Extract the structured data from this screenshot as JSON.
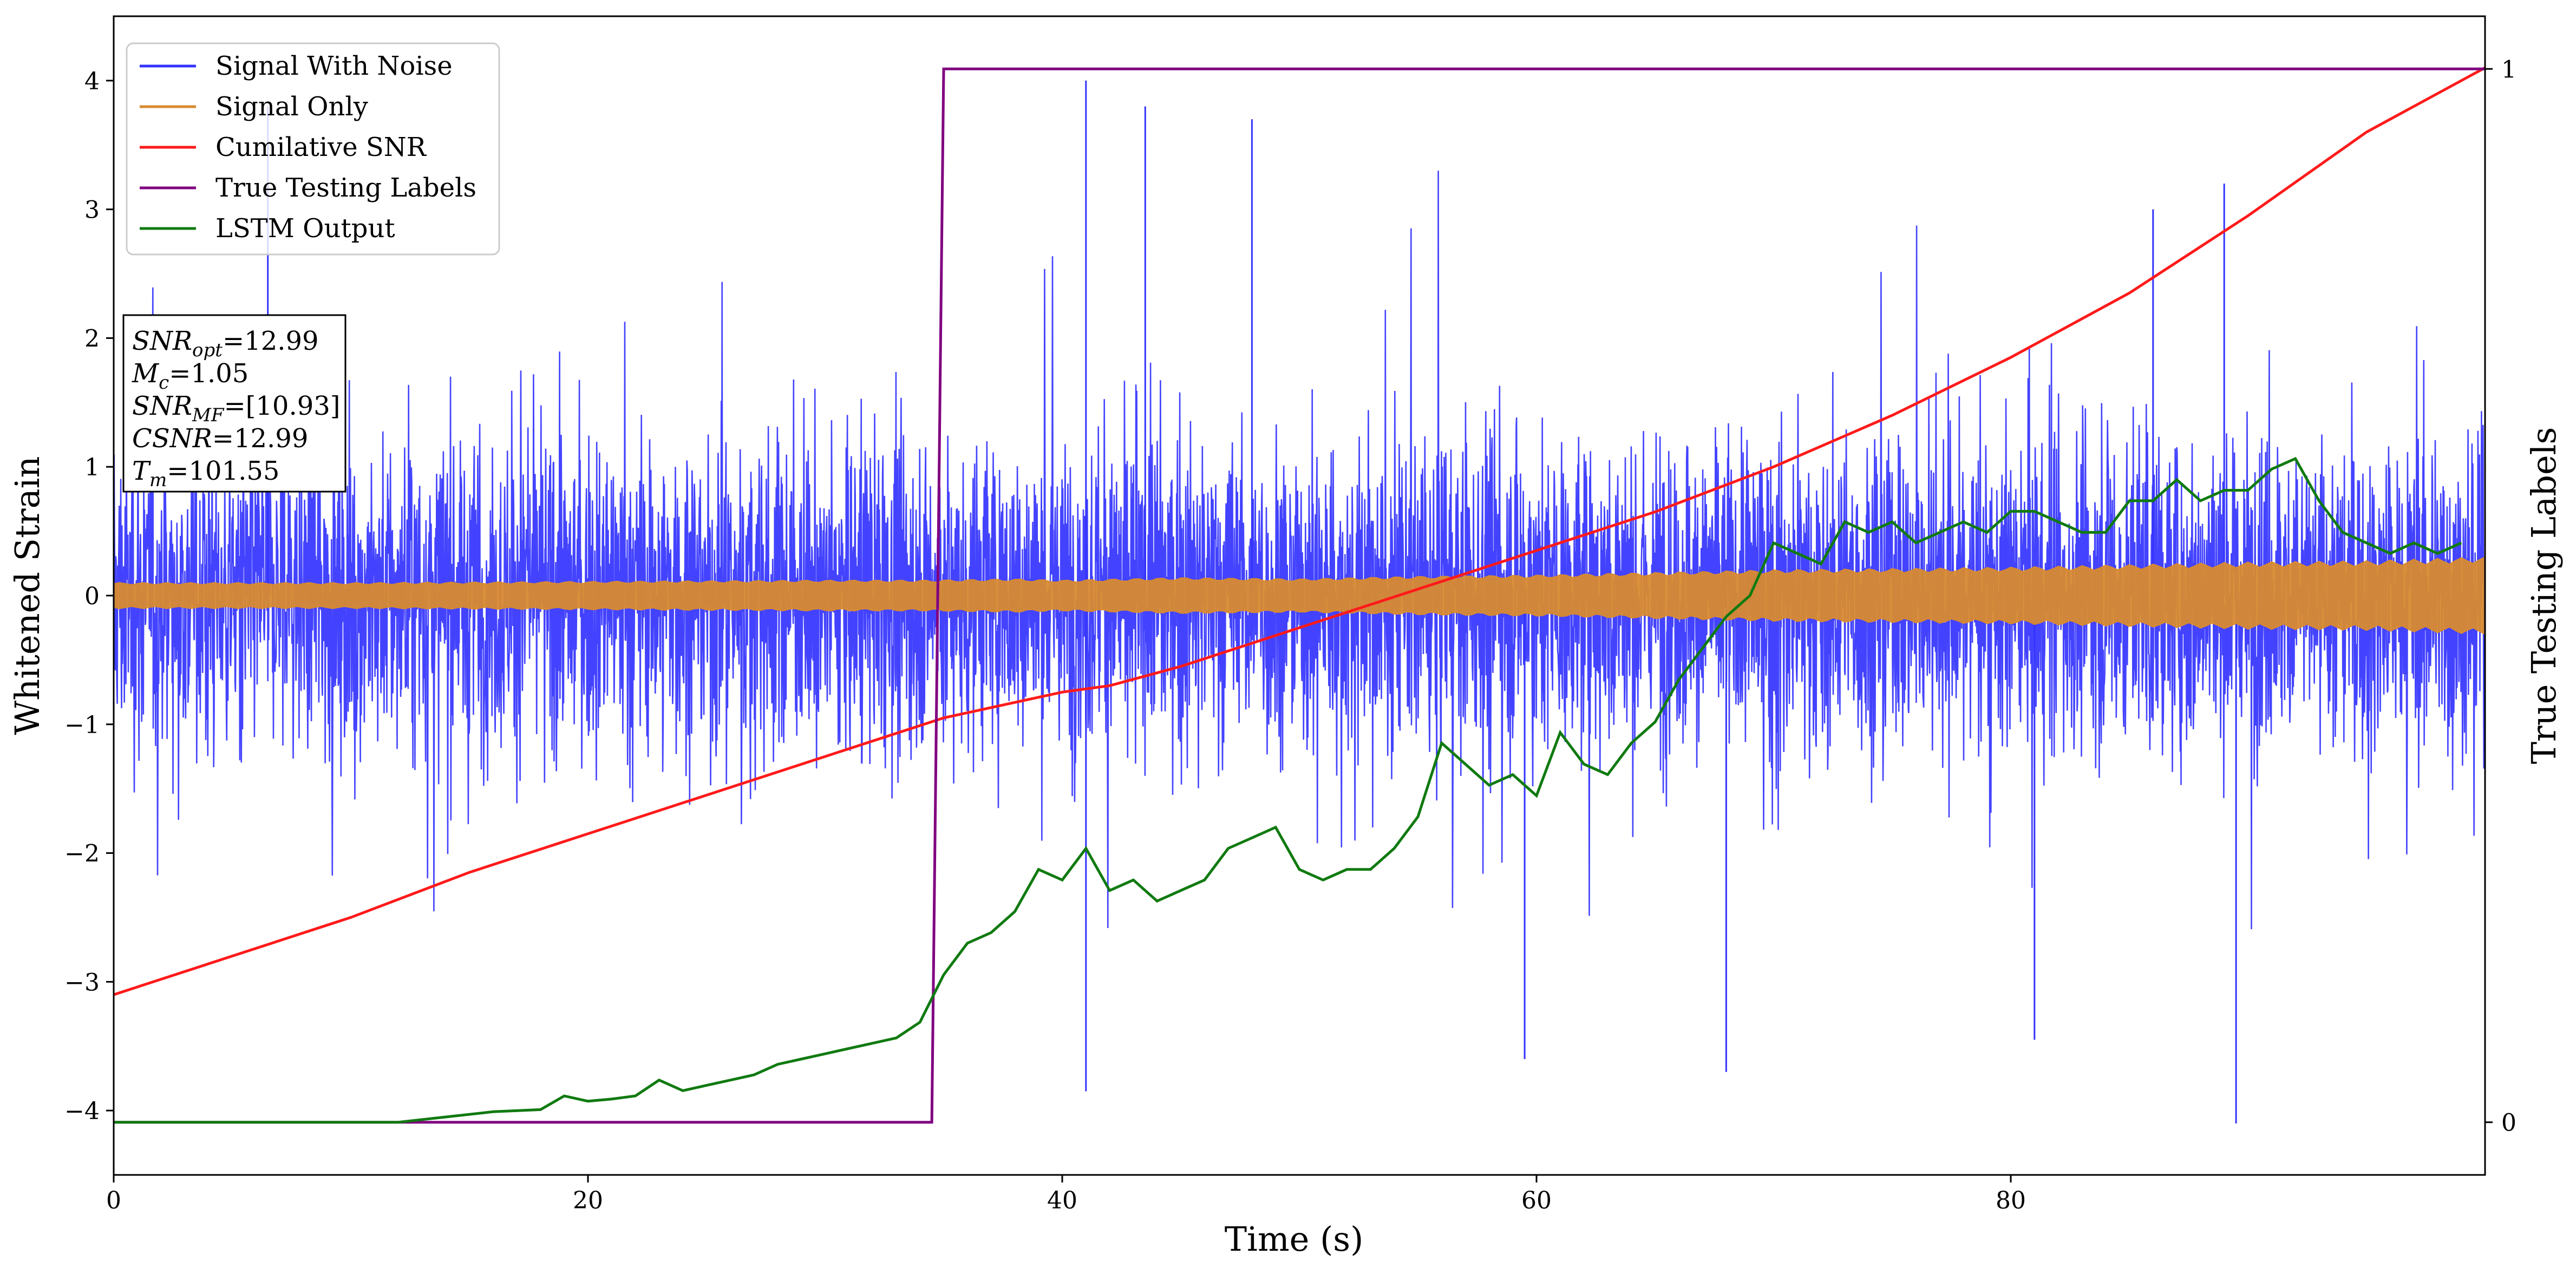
{
  "chart_data": {
    "type": "line",
    "xlabel": "Time (s)",
    "ylabel": "Whitened Strain",
    "y2label": "True Testing Labels",
    "xlim": [
      0,
      100
    ],
    "ylim": [
      -4.5,
      4.5
    ],
    "y2lim": [
      -0.05,
      1.05
    ],
    "xticks": [
      0,
      20,
      40,
      60,
      80
    ],
    "yticks": [
      -4,
      -3,
      -2,
      -1,
      0,
      1,
      2,
      3,
      4
    ],
    "y2ticks": [
      0,
      1
    ],
    "legend_position": "top-left",
    "colors": {
      "signal_with_noise": "#3333ff",
      "signal_only": "#d88a30",
      "cumulative_snr": "#ff1a1a",
      "true_labels": "#800080",
      "lstm_output": "#107a10"
    },
    "series": [
      {
        "name": "Signal With Noise",
        "description_values": {
          "approx_band_min": -4.1,
          "approx_band_max": 4.0,
          "peak_up": [
            [
              41,
              4.0
            ],
            [
              6.5,
              3.8
            ],
            [
              43.5,
              3.8
            ],
            [
              48,
              3.7
            ],
            [
              89,
              3.2
            ],
            [
              86,
              3.0
            ]
          ],
          "peak_down": [
            [
              89.5,
              -4.1
            ],
            [
              41,
              -3.85
            ],
            [
              68,
              -3.7
            ],
            [
              59.5,
              -3.6
            ],
            [
              81,
              -3.45
            ]
          ]
        }
      },
      {
        "name": "Signal Only",
        "envelope": {
          "x": [
            0,
            10,
            20,
            30,
            34,
            38,
            40,
            45,
            50,
            55,
            60,
            65,
            70,
            75,
            80,
            85,
            90,
            95,
            100
          ],
          "amp": [
            0.1,
            0.1,
            0.11,
            0.12,
            0.12,
            0.13,
            0.12,
            0.14,
            0.13,
            0.15,
            0.16,
            0.18,
            0.2,
            0.21,
            0.22,
            0.24,
            0.26,
            0.27,
            0.3
          ]
        }
      },
      {
        "name": "Cumilative SNR",
        "x": [
          0,
          5,
          10,
          15,
          20,
          25,
          30,
          35,
          40,
          42,
          45,
          50,
          55,
          60,
          65,
          70,
          75,
          80,
          85,
          90,
          95,
          100
        ],
        "y": [
          -3.1,
          -2.8,
          -2.5,
          -2.15,
          -1.85,
          -1.55,
          -1.25,
          -0.95,
          -0.75,
          -0.7,
          -0.55,
          -0.25,
          0.05,
          0.35,
          0.65,
          1.0,
          1.4,
          1.85,
          2.35,
          2.95,
          3.6,
          4.1
        ]
      },
      {
        "name": "True Testing Labels",
        "axis": "y2",
        "x": [
          0,
          34.5,
          35,
          100
        ],
        "y": [
          0,
          0,
          1,
          1
        ]
      },
      {
        "name": "LSTM Output",
        "axis": "y2",
        "x": [
          0,
          12,
          14,
          16,
          18,
          19,
          20,
          21,
          22,
          23,
          24,
          25,
          26,
          27,
          28,
          29,
          30,
          31,
          32,
          33,
          34,
          35,
          36,
          37,
          38,
          39,
          40,
          41,
          42,
          43,
          44,
          45,
          46,
          47,
          48,
          49,
          50,
          51,
          52,
          53,
          54,
          55,
          56,
          57,
          58,
          59,
          60,
          61,
          62,
          63,
          64,
          65,
          66,
          67,
          68,
          69,
          70,
          71,
          72,
          73,
          74,
          75,
          76,
          77,
          78,
          79,
          80,
          81,
          82,
          83,
          84,
          85,
          86,
          87,
          88,
          89,
          90,
          91,
          92,
          93,
          94,
          95,
          96,
          97,
          98,
          99
        ],
        "y": [
          0.0,
          0.0,
          0.005,
          0.01,
          0.012,
          0.025,
          0.02,
          0.022,
          0.025,
          0.04,
          0.03,
          0.035,
          0.04,
          0.045,
          0.055,
          0.06,
          0.065,
          0.07,
          0.075,
          0.08,
          0.095,
          0.14,
          0.17,
          0.18,
          0.2,
          0.24,
          0.23,
          0.26,
          0.22,
          0.23,
          0.21,
          0.22,
          0.23,
          0.26,
          0.27,
          0.28,
          0.24,
          0.23,
          0.24,
          0.24,
          0.26,
          0.29,
          0.36,
          0.34,
          0.32,
          0.33,
          0.31,
          0.37,
          0.34,
          0.33,
          0.36,
          0.38,
          0.42,
          0.45,
          0.48,
          0.5,
          0.55,
          0.54,
          0.53,
          0.57,
          0.56,
          0.57,
          0.55,
          0.56,
          0.57,
          0.56,
          0.58,
          0.58,
          0.57,
          0.56,
          0.56,
          0.59,
          0.59,
          0.61,
          0.59,
          0.6,
          0.6,
          0.62,
          0.63,
          0.59,
          0.56,
          0.55,
          0.54,
          0.55,
          0.54,
          0.55
        ]
      }
    ],
    "info_box": [
      {
        "var": "SNR",
        "sub": "opt",
        "val": "=12.99"
      },
      {
        "var": "M",
        "sub": "c",
        "val": "=1.05"
      },
      {
        "var": "SNR",
        "sub": "MF",
        "val": "=[10.93]"
      },
      {
        "var": "CSNR",
        "sub": "",
        "val": "=12.99"
      },
      {
        "var": "T",
        "sub": "m",
        "val": "=101.55"
      }
    ]
  }
}
